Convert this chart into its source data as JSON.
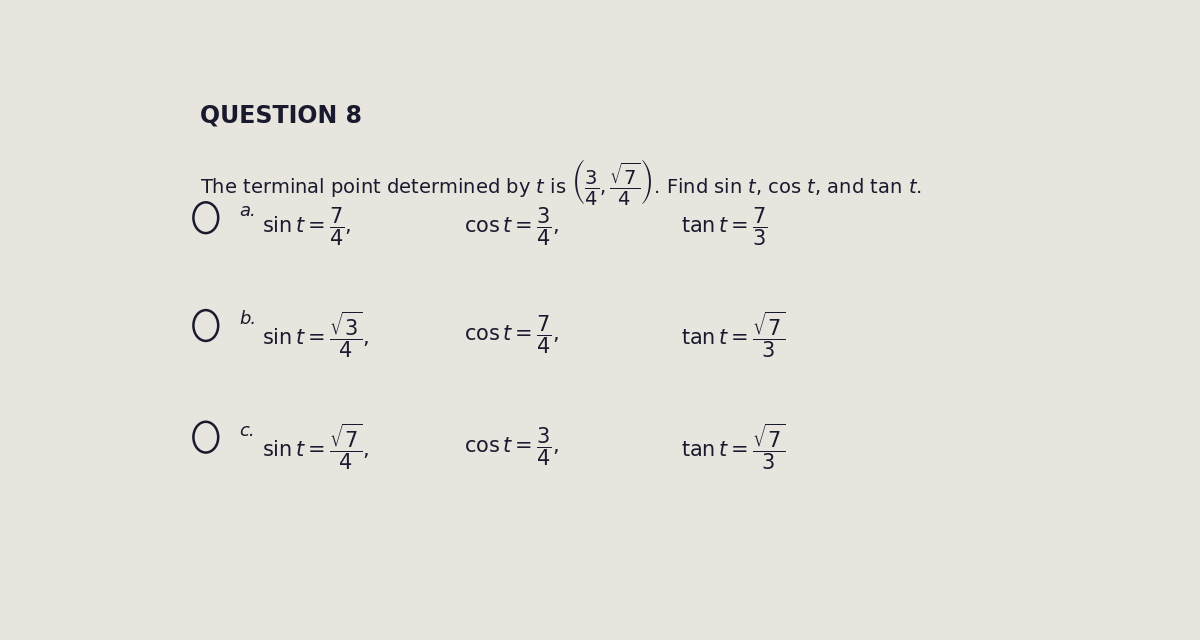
{
  "title": "QUESTION 8",
  "bg_color": "#e8e4de",
  "text_color": "#1a1a2e",
  "title_color": "#1a1a2e",
  "figsize": [
    12.0,
    6.4
  ],
  "dpi": 100,
  "question_intro": "The terminal point determined by $t$ is $\\left(\\dfrac{3}{4}, \\dfrac{\\sqrt{7}}{4}\\right)$. Find sin $t$, cos $t$, and tan $t$.",
  "options": [
    {
      "label": "a.",
      "sin": "$\\sin t = \\dfrac{7}{4}$",
      "cos": "$\\cos t = \\dfrac{3}{4}$",
      "tan": "$\\tan t = \\dfrac{7}{3}$"
    },
    {
      "label": "b.",
      "sin": "$\\sin t = \\dfrac{\\sqrt{3}}{4}$",
      "cos": "$\\cos t = \\dfrac{7}{4}$",
      "tan": "$\\tan t = \\dfrac{\\sqrt{7}}{3}$"
    },
    {
      "label": "c.",
      "sin": "$\\sin t = \\dfrac{\\sqrt{7}}{4}$",
      "cos": "$\\cos t = \\dfrac{3}{4}$",
      "tan": "$\\tan t = \\dfrac{\\sqrt{7}}{3}$"
    }
  ]
}
